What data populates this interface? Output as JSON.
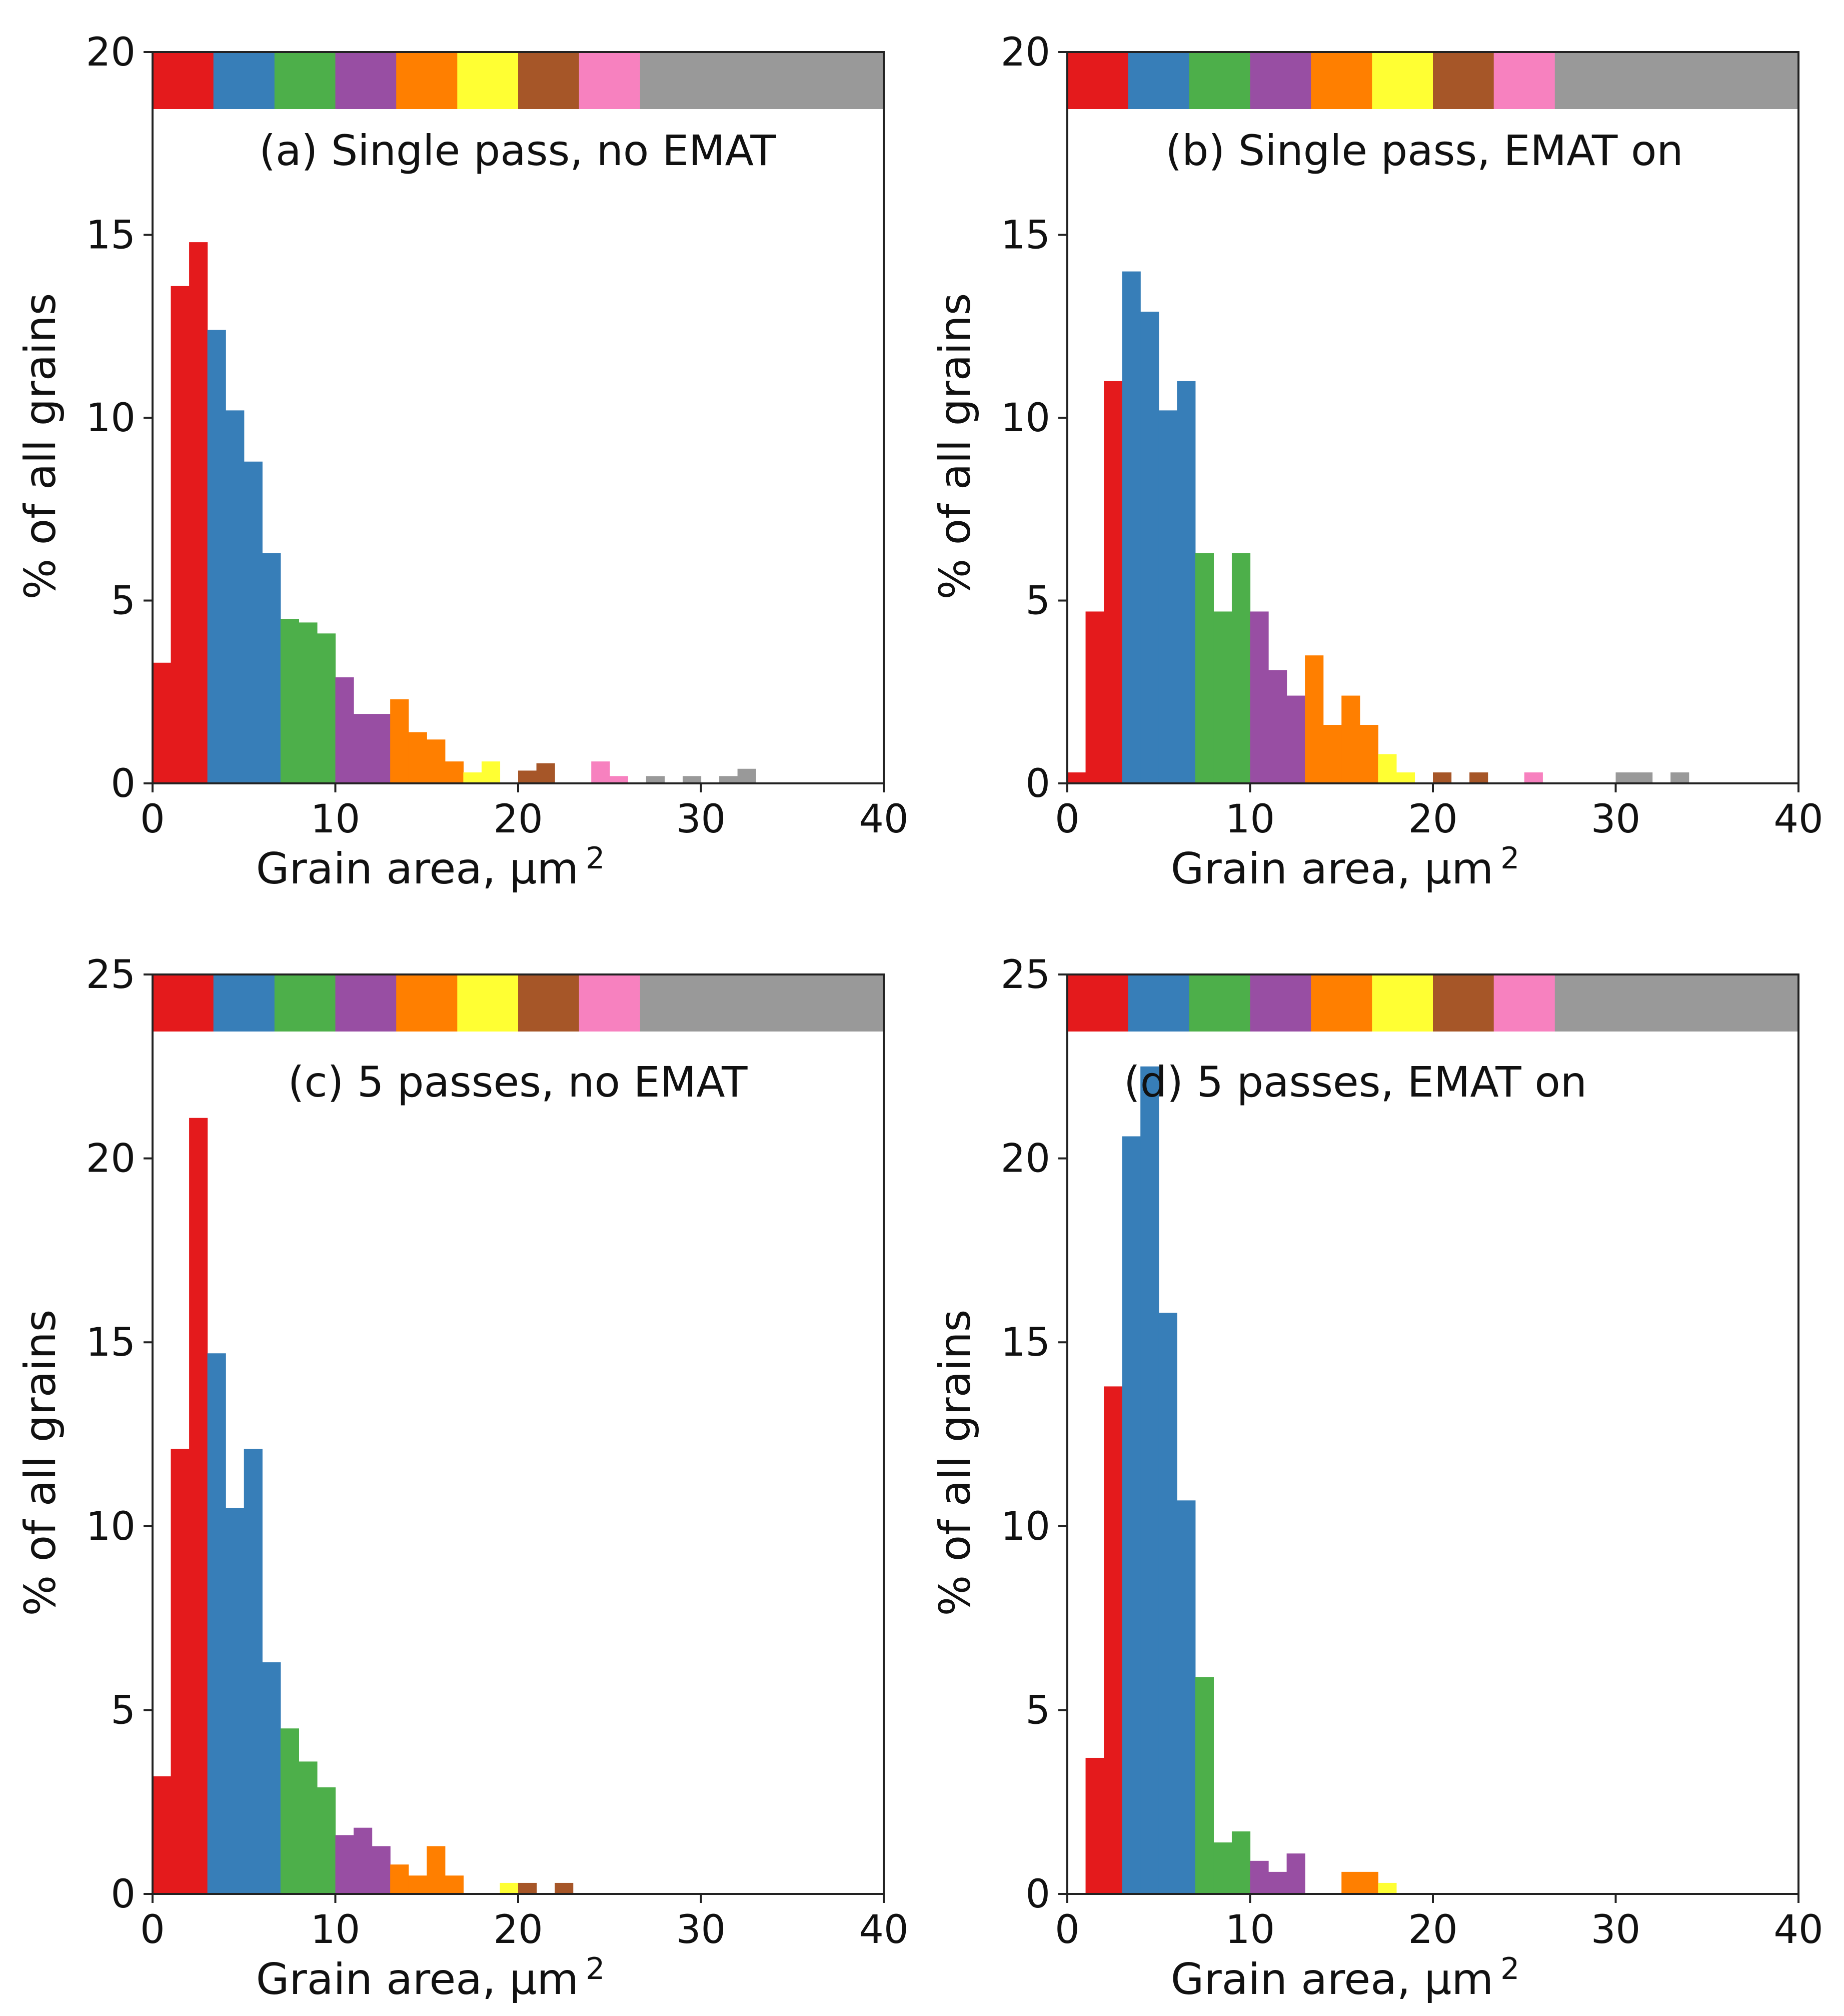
{
  "figure": {
    "colorbar": [
      "#e41a1c",
      "#377eb8",
      "#4daf4a",
      "#984ea3",
      "#ff7f00",
      "#ffff33",
      "#a65628",
      "#f781bf",
      "#999999"
    ],
    "colorbar_bin_edges": [
      0,
      3.33,
      6.67,
      10,
      13.33,
      16.67,
      20,
      23.33,
      26.67,
      40
    ]
  },
  "chart_data": [
    {
      "type": "bar",
      "title": "(a) Single pass, no EMAT",
      "xlabel": "Grain area, μm",
      "xlabel_sup": "2",
      "ylabel": "% of all grains",
      "xlim": [
        0,
        40
      ],
      "ylim": [
        0,
        20
      ],
      "xticks": [
        0,
        10,
        20,
        30,
        40
      ],
      "yticks": [
        0,
        5,
        10,
        15,
        20
      ],
      "bin_width": 1,
      "bin_starts": [
        0,
        1,
        2,
        3,
        4,
        5,
        6,
        7,
        8,
        9,
        10,
        11,
        12,
        13,
        14,
        15,
        16,
        17,
        18,
        19,
        20,
        21,
        22,
        23,
        24,
        25,
        26,
        27,
        28,
        29,
        30,
        31,
        32,
        33,
        34,
        35,
        36,
        37,
        38,
        39
      ],
      "values": [
        3.3,
        13.6,
        14.8,
        12.4,
        10.2,
        8.8,
        6.3,
        4.5,
        4.4,
        4.1,
        2.9,
        1.9,
        1.9,
        2.3,
        1.4,
        1.2,
        0.6,
        0.3,
        0.6,
        0,
        0.35,
        0.55,
        0,
        0,
        0.6,
        0.2,
        0,
        0.2,
        0,
        0.2,
        0,
        0.2,
        0.4,
        0,
        0,
        0,
        0,
        0,
        0,
        0
      ]
    },
    {
      "type": "bar",
      "title": "(b) Single pass, EMAT on",
      "xlabel": "Grain area, μm",
      "xlabel_sup": "2",
      "ylabel": "% of all grains",
      "xlim": [
        0,
        40
      ],
      "ylim": [
        0,
        20
      ],
      "xticks": [
        0,
        10,
        20,
        30,
        40
      ],
      "yticks": [
        0,
        5,
        10,
        15,
        20
      ],
      "bin_width": 1,
      "bin_starts": [
        0,
        1,
        2,
        3,
        4,
        5,
        6,
        7,
        8,
        9,
        10,
        11,
        12,
        13,
        14,
        15,
        16,
        17,
        18,
        19,
        20,
        21,
        22,
        23,
        24,
        25,
        26,
        27,
        28,
        29,
        30,
        31,
        32,
        33,
        34,
        35,
        36,
        37,
        38,
        39
      ],
      "values": [
        0.3,
        4.7,
        11.0,
        14.0,
        12.9,
        10.2,
        11.0,
        6.3,
        4.7,
        6.3,
        4.7,
        3.1,
        2.4,
        3.5,
        1.6,
        2.4,
        1.6,
        0.8,
        0.3,
        0,
        0.3,
        0,
        0.3,
        0,
        0,
        0.3,
        0,
        0,
        0,
        0,
        0.3,
        0.3,
        0,
        0.3,
        0,
        0,
        0,
        0,
        0,
        0
      ]
    },
    {
      "type": "bar",
      "title": "(c) 5 passes, no EMAT",
      "xlabel": "Grain area, μm",
      "xlabel_sup": "2",
      "ylabel": "% of all grains",
      "xlim": [
        0,
        40
      ],
      "ylim": [
        0,
        25
      ],
      "xticks": [
        0,
        10,
        20,
        30,
        40
      ],
      "yticks": [
        0,
        5,
        10,
        15,
        20,
        25
      ],
      "bin_width": 1,
      "bin_starts": [
        0,
        1,
        2,
        3,
        4,
        5,
        6,
        7,
        8,
        9,
        10,
        11,
        12,
        13,
        14,
        15,
        16,
        17,
        18,
        19,
        20,
        21,
        22,
        23,
        24,
        25,
        26,
        27,
        28,
        29,
        30,
        31,
        32,
        33,
        34,
        35,
        36,
        37,
        38,
        39
      ],
      "values": [
        3.2,
        12.1,
        21.1,
        14.7,
        10.5,
        12.1,
        6.3,
        4.5,
        3.6,
        2.9,
        1.6,
        1.8,
        1.3,
        0.8,
        0.5,
        1.3,
        0.5,
        0,
        0,
        0.3,
        0.3,
        0,
        0.3,
        0,
        0,
        0,
        0,
        0,
        0,
        0,
        0,
        0,
        0,
        0,
        0,
        0,
        0,
        0,
        0,
        0
      ]
    },
    {
      "type": "bar",
      "title": "(d) 5 passes, EMAT on",
      "xlabel": "Grain area, μm",
      "xlabel_sup": "2",
      "ylabel": "% of all grains",
      "xlim": [
        0,
        40
      ],
      "ylim": [
        0,
        25
      ],
      "xticks": [
        0,
        10,
        20,
        30,
        40
      ],
      "yticks": [
        0,
        5,
        10,
        15,
        20,
        25
      ],
      "bin_width": 1,
      "bin_starts": [
        0,
        1,
        2,
        3,
        4,
        5,
        6,
        7,
        8,
        9,
        10,
        11,
        12,
        13,
        14,
        15,
        16,
        17,
        18,
        19,
        20,
        21,
        22,
        23,
        24,
        25,
        26,
        27,
        28,
        29,
        30,
        31,
        32,
        33,
        34,
        35,
        36,
        37,
        38,
        39
      ],
      "values": [
        0,
        3.7,
        13.8,
        20.6,
        22.5,
        15.8,
        10.7,
        5.9,
        1.4,
        1.7,
        0.9,
        0.6,
        1.1,
        0,
        0,
        0.6,
        0.6,
        0.3,
        0,
        0,
        0,
        0,
        0,
        0,
        0,
        0,
        0,
        0,
        0,
        0,
        0,
        0,
        0,
        0,
        0,
        0,
        0,
        0,
        0,
        0
      ]
    }
  ]
}
